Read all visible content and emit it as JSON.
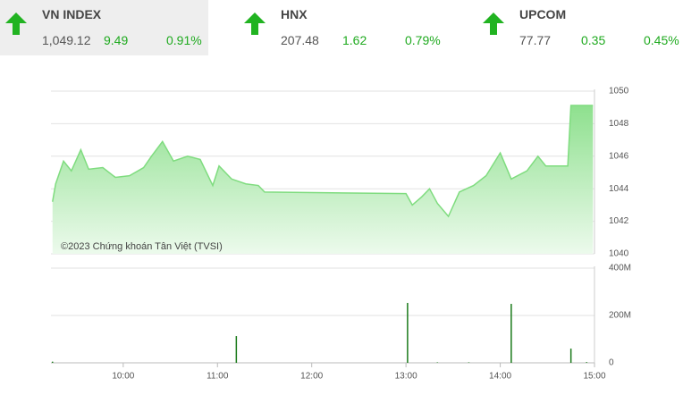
{
  "indices": [
    {
      "name": "VN INDEX",
      "value": "1,049.12",
      "change": "9.49",
      "percent": "0.91%"
    },
    {
      "name": "HNX",
      "value": "207.48",
      "change": "1.62",
      "percent": "0.79%"
    },
    {
      "name": "UPCOM",
      "value": "77.77",
      "change": "0.35",
      "percent": "0.45%"
    }
  ],
  "chart_data": [
    {
      "type": "area",
      "annotation": "©2023 Chứng khoán Tân Việt (TVSI)",
      "color": "#7fdc7f",
      "x": [
        "09:15",
        "09:17",
        "09:22",
        "09:27",
        "09:33",
        "09:38",
        "09:47",
        "09:55",
        "10:04",
        "10:13",
        "10:18",
        "10:25",
        "10:32",
        "10:41",
        "10:49",
        "10:57",
        "11:01",
        "11:09",
        "11:18",
        "11:26",
        "11:30",
        "13:00",
        "13:04",
        "13:10",
        "13:15",
        "13:20",
        "13:27",
        "13:34",
        "13:43",
        "13:51",
        "14:00",
        "14:07",
        "14:17",
        "14:24",
        "14:29",
        "14:43",
        "14:45",
        "14:59"
      ],
      "values": [
        1043.2,
        1044.3,
        1045.7,
        1045.1,
        1046.4,
        1045.2,
        1045.3,
        1044.7,
        1044.8,
        1045.3,
        1046.0,
        1046.9,
        1045.7,
        1046.0,
        1045.8,
        1044.2,
        1045.4,
        1044.6,
        1044.3,
        1044.2,
        1043.8,
        1043.7,
        1043.0,
        1043.5,
        1044.0,
        1043.1,
        1042.3,
        1043.8,
        1044.2,
        1044.8,
        1046.2,
        1044.6,
        1045.1,
        1046.0,
        1045.4,
        1045.4,
        1049.12,
        1049.12
      ],
      "xlim": [
        "09:14",
        "15:00"
      ],
      "ylim": [
        1040,
        1050
      ],
      "yticks": [
        1040,
        1042,
        1044,
        1046,
        1048,
        1050
      ],
      "grid": true
    },
    {
      "type": "bar",
      "color": "#1a7a1a",
      "x": [
        "09:15",
        "11:12",
        "13:01",
        "13:20",
        "13:40",
        "14:07",
        "14:45",
        "14:55"
      ],
      "values": [
        5,
        113,
        253,
        2,
        2,
        249,
        60,
        3
      ],
      "xlim": [
        "09:14",
        "15:00"
      ],
      "ylim": [
        0,
        400
      ],
      "yticks": [
        0,
        {
          "value": 200,
          "label": "200M"
        },
        {
          "value": 400,
          "label": "400M"
        }
      ],
      "xticks": [
        "10:00",
        "11:00",
        "12:00",
        "13:00",
        "14:00",
        "15:00"
      ],
      "grid": true
    }
  ]
}
